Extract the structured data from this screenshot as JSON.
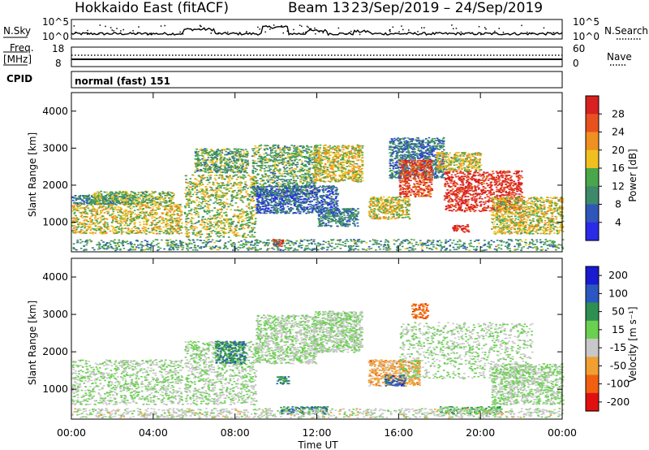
{
  "header": {
    "station": "Hokkaido East (fitACF)",
    "beam": "Beam 13",
    "date_range": "23/Sep/2019 – 24/Sep/2019"
  },
  "sky_panel": {
    "left_label": "N.Sky",
    "right_label": "N.Search",
    "left_ticks": [
      "10^5",
      "10^0"
    ],
    "right_ticks": [
      "10^5",
      "10^0"
    ]
  },
  "freq_panel": {
    "left_label_1": "Freq.",
    "left_label_2": "[MHz]",
    "right_label": "Nave",
    "left_ticks": [
      "18",
      "8"
    ],
    "right_ticks": [
      "60",
      "0"
    ]
  },
  "cpid": {
    "label": "CPID",
    "value": "normal (fast) 151"
  },
  "colors": {
    "power_scale": [
      "#2a2ae8",
      "#2f56b8",
      "#3c8a6a",
      "#4aa64a",
      "#f0c020",
      "#f09020",
      "#e85020",
      "#d82020"
    ],
    "velocity_scale": [
      "#1a1ad0",
      "#2a58c0",
      "#2e9050",
      "#6ad050",
      "#c8c8c8",
      "#f0a030",
      "#f06010",
      "#e01010"
    ]
  },
  "chart_data": [
    {
      "type": "heatmap",
      "ylabel": "Slant Range [km]",
      "xlabel": "",
      "x_ticks": [
        "00:00",
        "04:00",
        "08:00",
        "12:00",
        "16:00",
        "20:00",
        "00:00"
      ],
      "y_ticks": [
        "1000",
        "2000",
        "3000",
        "4000"
      ],
      "ylim": [
        200,
        4500
      ],
      "colorbar": {
        "title": "Power [dB]",
        "ticks": [
          "4",
          "8",
          "12",
          "16",
          "20",
          "24",
          "28"
        ]
      },
      "regions": [
        {
          "t0": 0.0,
          "t1": 5.4,
          "r0": 700,
          "r1": 1500,
          "level": 0.55
        },
        {
          "t0": 0.0,
          "t1": 3.0,
          "r0": 1500,
          "r1": 1750,
          "level": 0.3
        },
        {
          "t0": 1.0,
          "t1": 5.0,
          "r0": 1500,
          "r1": 1850,
          "level": 0.45
        },
        {
          "t0": 5.5,
          "t1": 9.0,
          "r0": 600,
          "r1": 2300,
          "level": 0.5
        },
        {
          "t0": 6.0,
          "t1": 8.6,
          "r0": 2350,
          "r1": 3000,
          "level": 0.4
        },
        {
          "t0": 8.8,
          "t1": 12.0,
          "r0": 1700,
          "r1": 3100,
          "level": 0.4
        },
        {
          "t0": 9.8,
          "t1": 10.3,
          "r0": 350,
          "r1": 550,
          "level": 0.95
        },
        {
          "t0": 11.8,
          "t1": 14.2,
          "r0": 2100,
          "r1": 3100,
          "level": 0.55
        },
        {
          "t0": 12.0,
          "t1": 14.0,
          "r0": 900,
          "r1": 1400,
          "level": 0.3
        },
        {
          "t0": 14.5,
          "t1": 16.5,
          "r0": 1100,
          "r1": 1700,
          "level": 0.55
        },
        {
          "t0": 15.5,
          "t1": 18.2,
          "r0": 2200,
          "r1": 3300,
          "level": 0.25
        },
        {
          "t0": 16.0,
          "t1": 17.6,
          "r0": 1700,
          "r1": 2700,
          "level": 0.85
        },
        {
          "t0": 18.2,
          "t1": 22.0,
          "r0": 1300,
          "r1": 2400,
          "level": 0.92
        },
        {
          "t0": 17.8,
          "t1": 20.0,
          "r0": 2400,
          "r1": 2900,
          "level": 0.55
        },
        {
          "t0": 20.5,
          "t1": 24.0,
          "r0": 700,
          "r1": 1700,
          "level": 0.55
        },
        {
          "t0": 18.6,
          "t1": 19.4,
          "r0": 750,
          "r1": 950,
          "level": 0.95
        },
        {
          "t0": 0.0,
          "t1": 24.0,
          "r0": 250,
          "r1": 550,
          "level": 0.35
        },
        {
          "t0": 9.0,
          "t1": 13.0,
          "r0": 1250,
          "r1": 2000,
          "level": 0.2
        }
      ]
    },
    {
      "type": "heatmap",
      "ylabel": "Slant Range [km]",
      "xlabel": "Time UT",
      "x_ticks": [
        "00:00",
        "04:00",
        "08:00",
        "12:00",
        "16:00",
        "20:00",
        "00:00"
      ],
      "y_ticks": [
        "1000",
        "2000",
        "3000",
        "4000"
      ],
      "ylim": [
        200,
        4500
      ],
      "colorbar": {
        "title": "Velocity [m s⁻¹]",
        "ticks": [
          "200",
          "100",
          "50",
          "15",
          "-15",
          "-50",
          "-100",
          "-200"
        ]
      },
      "regions": [
        {
          "t0": 0.0,
          "t1": 5.4,
          "r0": 600,
          "r1": 1800,
          "level": 0.5
        },
        {
          "t0": 5.5,
          "t1": 9.0,
          "r0": 600,
          "r1": 2300,
          "level": 0.5
        },
        {
          "t0": 7.0,
          "t1": 8.5,
          "r0": 1700,
          "r1": 2300,
          "level": 0.7
        },
        {
          "t0": 9.0,
          "t1": 12.0,
          "r0": 1700,
          "r1": 3000,
          "level": 0.5
        },
        {
          "t0": 11.8,
          "t1": 14.2,
          "r0": 2000,
          "r1": 3100,
          "level": 0.5
        },
        {
          "t0": 14.5,
          "t1": 17.0,
          "r0": 1100,
          "r1": 1800,
          "level": 0.32
        },
        {
          "t0": 15.3,
          "t1": 16.3,
          "r0": 1100,
          "r1": 1400,
          "level": 0.8
        },
        {
          "t0": 16.0,
          "t1": 22.5,
          "r0": 1300,
          "r1": 2800,
          "level": 0.5
        },
        {
          "t0": 20.5,
          "t1": 24.0,
          "r0": 600,
          "r1": 1700,
          "level": 0.5
        },
        {
          "t0": 16.6,
          "t1": 17.4,
          "r0": 2900,
          "r1": 3300,
          "level": 0.2
        },
        {
          "t0": 10.2,
          "t1": 12.5,
          "r0": 350,
          "r1": 550,
          "level": 0.72
        },
        {
          "t0": 18.0,
          "t1": 21.0,
          "r0": 350,
          "r1": 550,
          "level": 0.62
        },
        {
          "t0": 10.0,
          "t1": 10.6,
          "r0": 1150,
          "r1": 1350,
          "level": 0.7
        },
        {
          "t0": 0.0,
          "t1": 24.0,
          "r0": 250,
          "r1": 500,
          "level": 0.45
        }
      ]
    }
  ]
}
